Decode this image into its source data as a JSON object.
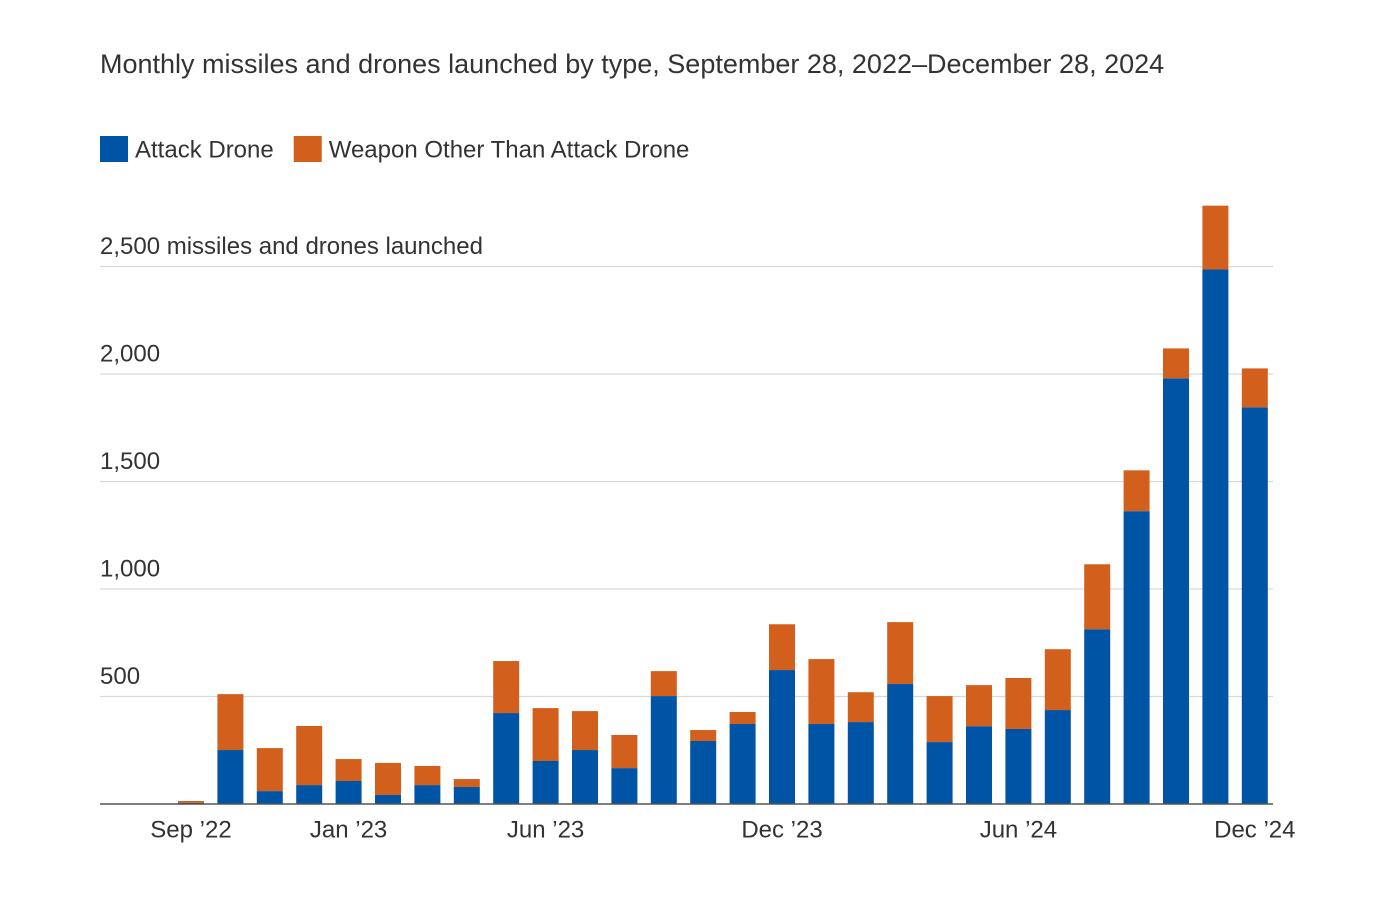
{
  "chart_data": {
    "type": "stacked-bar",
    "title": "Monthly missiles and drones launched by type, September 28, 2022–December 28, 2024",
    "categories": [
      "Sep ’22",
      null,
      null,
      null,
      "Jan ’23",
      null,
      null,
      null,
      null,
      "Jun ’23",
      null,
      null,
      null,
      null,
      null,
      "Dec ’23",
      null,
      null,
      null,
      null,
      null,
      "Jun ’24",
      null,
      null,
      null,
      null,
      null,
      "Dec ’24"
    ],
    "series": [
      {
        "name": "Attack Drone",
        "color": "#0054a6",
        "values": [
          5,
          251,
          60,
          88,
          107,
          42,
          88,
          79,
          423,
          200,
          251,
          167,
          502,
          293,
          372,
          623,
          372,
          381,
          558,
          288,
          362,
          349,
          437,
          813,
          1362,
          1980,
          2486,
          1845
        ]
      },
      {
        "name": "Weapon Other Than Attack Drone",
        "color": "#d2601c",
        "values": [
          9,
          260,
          200,
          275,
          102,
          149,
          89,
          37,
          242,
          246,
          181,
          154,
          116,
          51,
          56,
          213,
          302,
          139,
          288,
          214,
          191,
          237,
          283,
          302,
          190,
          139,
          297,
          181
        ]
      }
    ],
    "ylim": [
      0,
      2800
    ],
    "yticks": [
      500,
      {
        "value": 1000,
        "label": "1,000"
      },
      {
        "value": 1500,
        "label": "1,500"
      },
      {
        "value": 2000,
        "label": "2,000"
      },
      {
        "value": 2500,
        "label": "2,500 missiles and drones launched"
      }
    ],
    "grid": true
  }
}
